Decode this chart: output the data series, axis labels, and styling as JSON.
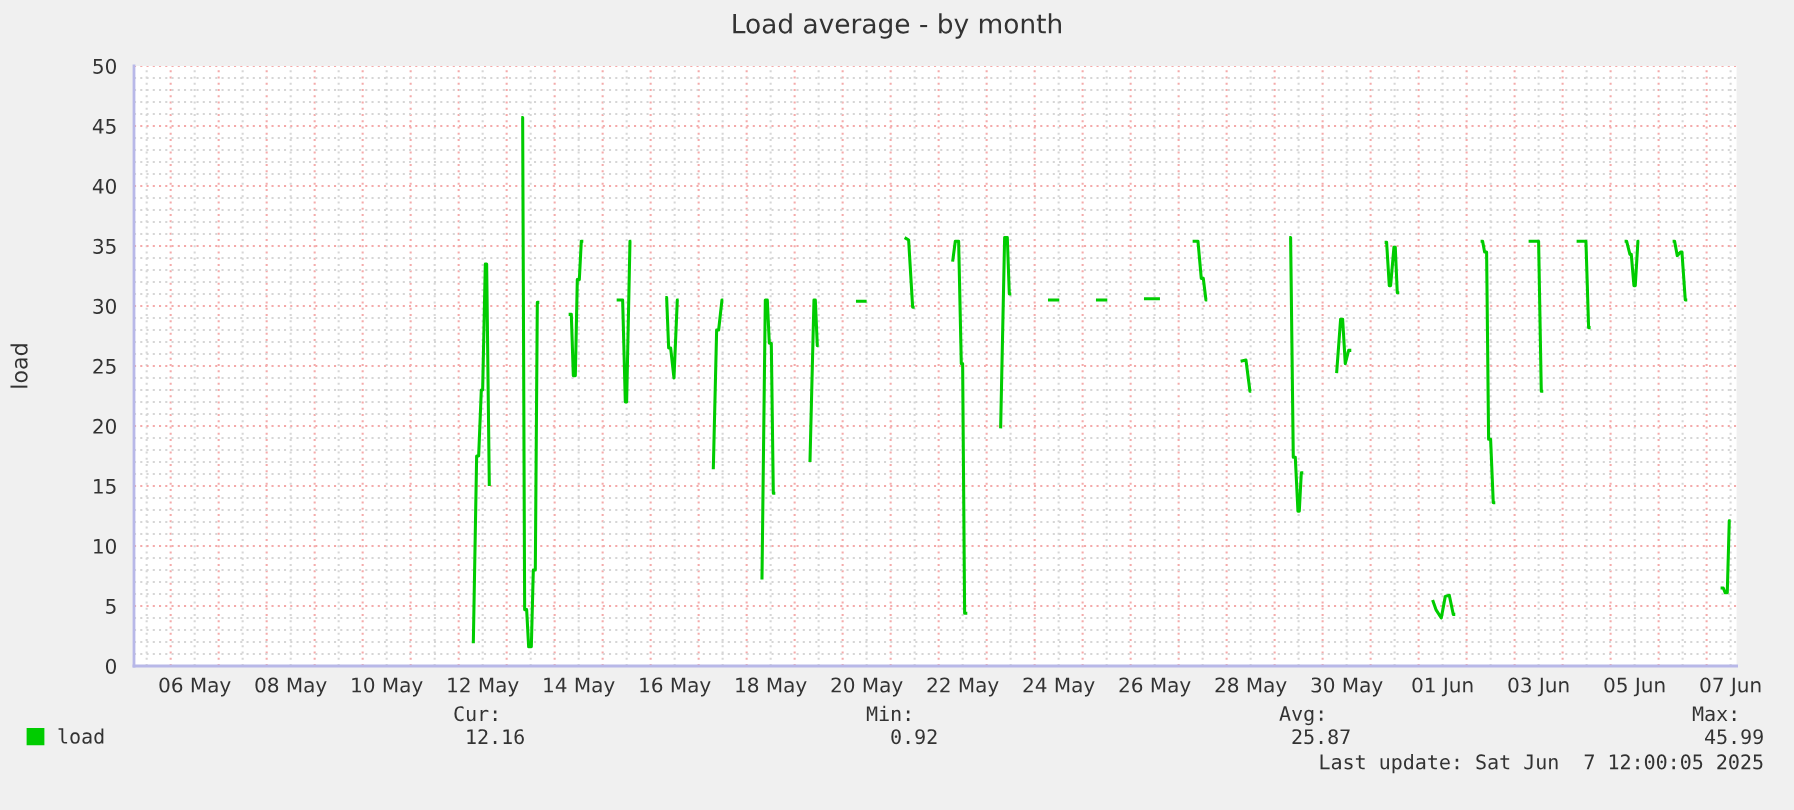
{
  "chart_data": {
    "type": "line",
    "title": "Load average - by month",
    "ylabel": "load",
    "xlim": [
      "2025-05-05T05:40",
      "2025-06-07T15:00"
    ],
    "xticks": [
      {
        "value": "2025-05-05T12:00",
        "label": null
      },
      {
        "value": "2025-05-06",
        "label": null
      },
      {
        "value": "2025-05-06T12:00",
        "label": "06 May"
      },
      {
        "value": "2025-05-07",
        "label": null
      },
      {
        "value": "2025-05-07T12:00",
        "label": null
      },
      {
        "value": "2025-05-08",
        "label": null
      },
      {
        "value": "2025-05-08T12:00",
        "label": "08 May"
      },
      {
        "value": "2025-05-09",
        "label": null
      },
      {
        "value": "2025-05-09T12:00",
        "label": null
      },
      {
        "value": "2025-05-10",
        "label": null
      },
      {
        "value": "2025-05-10T12:00",
        "label": "10 May"
      },
      {
        "value": "2025-05-11",
        "label": null
      },
      {
        "value": "2025-05-11T12:00",
        "label": null
      },
      {
        "value": "2025-05-12",
        "label": null
      },
      {
        "value": "2025-05-12T12:00",
        "label": "12 May"
      },
      {
        "value": "2025-05-13",
        "label": null
      },
      {
        "value": "2025-05-13T12:00",
        "label": null
      },
      {
        "value": "2025-05-14",
        "label": null
      },
      {
        "value": "2025-05-14T12:00",
        "label": "14 May"
      },
      {
        "value": "2025-05-15",
        "label": null
      },
      {
        "value": "2025-05-15T12:00",
        "label": null
      },
      {
        "value": "2025-05-16",
        "label": null
      },
      {
        "value": "2025-05-16T12:00",
        "label": "16 May"
      },
      {
        "value": "2025-05-17",
        "label": null
      },
      {
        "value": "2025-05-17T12:00",
        "label": null
      },
      {
        "value": "2025-05-18",
        "label": null
      },
      {
        "value": "2025-05-18T12:00",
        "label": "18 May"
      },
      {
        "value": "2025-05-19",
        "label": null
      },
      {
        "value": "2025-05-19T12:00",
        "label": null
      },
      {
        "value": "2025-05-20",
        "label": null
      },
      {
        "value": "2025-05-20T12:00",
        "label": "20 May"
      },
      {
        "value": "2025-05-21",
        "label": null
      },
      {
        "value": "2025-05-21T12:00",
        "label": null
      },
      {
        "value": "2025-05-22",
        "label": null
      },
      {
        "value": "2025-05-22T12:00",
        "label": "22 May"
      },
      {
        "value": "2025-05-23",
        "label": null
      },
      {
        "value": "2025-05-23T12:00",
        "label": null
      },
      {
        "value": "2025-05-24",
        "label": null
      },
      {
        "value": "2025-05-24T12:00",
        "label": "24 May"
      },
      {
        "value": "2025-05-25",
        "label": null
      },
      {
        "value": "2025-05-25T12:00",
        "label": null
      },
      {
        "value": "2025-05-26",
        "label": null
      },
      {
        "value": "2025-05-26T12:00",
        "label": "26 May"
      },
      {
        "value": "2025-05-27",
        "label": null
      },
      {
        "value": "2025-05-27T12:00",
        "label": null
      },
      {
        "value": "2025-05-28",
        "label": null
      },
      {
        "value": "2025-05-28T12:00",
        "label": "28 May"
      },
      {
        "value": "2025-05-29",
        "label": null
      },
      {
        "value": "2025-05-29T12:00",
        "label": null
      },
      {
        "value": "2025-05-30",
        "label": null
      },
      {
        "value": "2025-05-30T12:00",
        "label": "30 May"
      },
      {
        "value": "2025-05-31",
        "label": null
      },
      {
        "value": "2025-05-31T12:00",
        "label": null
      },
      {
        "value": "2025-06-01",
        "label": null
      },
      {
        "value": "2025-06-01T12:00",
        "label": "01 Jun"
      },
      {
        "value": "2025-06-02",
        "label": null
      },
      {
        "value": "2025-06-02T12:00",
        "label": null
      },
      {
        "value": "2025-06-03",
        "label": null
      },
      {
        "value": "2025-06-03T12:00",
        "label": "03 Jun"
      },
      {
        "value": "2025-06-04",
        "label": null
      },
      {
        "value": "2025-06-04T12:00",
        "label": null
      },
      {
        "value": "2025-06-05",
        "label": null
      },
      {
        "value": "2025-06-05T12:00",
        "label": "05 Jun"
      },
      {
        "value": "2025-06-06",
        "label": null
      },
      {
        "value": "2025-06-06T12:00",
        "label": null
      },
      {
        "value": "2025-06-07",
        "label": null
      },
      {
        "value": "2025-06-07T12:00",
        "label": "07 Jun"
      }
    ],
    "ylim": [
      0,
      50
    ],
    "yticks": [
      0,
      {
        "value": 1,
        "label": null
      },
      {
        "value": 2,
        "label": null
      },
      {
        "value": 3,
        "label": null
      },
      {
        "value": 4,
        "label": null
      },
      5,
      {
        "value": 6,
        "label": null
      },
      {
        "value": 7,
        "label": null
      },
      {
        "value": 8,
        "label": null
      },
      {
        "value": 9,
        "label": null
      },
      10,
      {
        "value": 11,
        "label": null
      },
      {
        "value": 12,
        "label": null
      },
      {
        "value": 13,
        "label": null
      },
      {
        "value": 14,
        "label": null
      },
      15,
      {
        "value": 16,
        "label": null
      },
      {
        "value": 17,
        "label": null
      },
      {
        "value": 18,
        "label": null
      },
      {
        "value": 19,
        "label": null
      },
      20,
      {
        "value": 21,
        "label": null
      },
      {
        "value": 22,
        "label": null
      },
      {
        "value": 23,
        "label": null
      },
      {
        "value": 24,
        "label": null
      },
      25,
      {
        "value": 26,
        "label": null
      },
      {
        "value": 27,
        "label": null
      },
      {
        "value": 28,
        "label": null
      },
      {
        "value": 29,
        "label": null
      },
      30,
      {
        "value": 31,
        "label": null
      },
      {
        "value": 32,
        "label": null
      },
      {
        "value": 33,
        "label": null
      },
      {
        "value": 34,
        "label": null
      },
      35,
      {
        "value": 36,
        "label": null
      },
      {
        "value": 37,
        "label": null
      },
      {
        "value": 38,
        "label": null
      },
      {
        "value": 39,
        "label": null
      },
      40,
      {
        "value": 41,
        "label": null
      },
      {
        "value": 42,
        "label": null
      },
      {
        "value": 43,
        "label": null
      },
      {
        "value": 44,
        "label": null
      },
      45,
      {
        "value": 46,
        "label": null
      },
      {
        "value": 47,
        "label": null
      },
      {
        "value": 48,
        "label": null
      },
      {
        "value": 49,
        "label": null
      },
      50
    ],
    "grid": true,
    "legend": "bottom left",
    "series": [
      {
        "name": "load",
        "color": "#00cc00",
        "x": [
          "2025-05-12T07:20",
          "2025-05-12T09:00",
          "2025-05-12T10:00",
          "2025-05-12T11:20",
          "2025-05-12T12:00",
          "2025-05-12T13:20",
          "2025-05-12T14:00",
          "2025-05-12T15:20",
          "2025-05-13T00:00",
          "2025-05-13T07:20",
          "2025-05-13T08:00",
          "2025-05-13T09:00",
          "2025-05-13T10:00",
          "2025-05-13T11:00",
          "2025-05-13T12:20",
          "2025-05-13T13:20",
          "2025-05-13T14:20",
          "2025-05-13T15:20",
          "2025-05-13T16:20",
          "2025-05-14T00:00",
          "2025-05-14T07:00",
          "2025-05-14T08:20",
          "2025-05-14T09:20",
          "2025-05-14T10:20",
          "2025-05-14T11:20",
          "2025-05-14T12:20",
          "2025-05-14T13:20",
          "2025-05-14T14:20",
          "2025-05-15T00:00",
          "2025-05-15T07:00",
          "2025-05-15T10:00",
          "2025-05-15T11:20",
          "2025-05-15T12:00",
          "2025-05-15T13:40",
          "2025-05-15T14:20",
          "2025-05-16T00:00",
          "2025-05-16T07:20",
          "2025-05-16T08:00",
          "2025-05-16T09:00",
          "2025-05-16T10:00",
          "2025-05-16T11:40",
          "2025-05-16T13:20",
          "2025-05-16T14:00",
          "2025-05-17T00:00",
          "2025-05-17T07:20",
          "2025-05-17T09:00",
          "2025-05-17T10:00",
          "2025-05-17T11:40",
          "2025-05-17T12:20",
          "2025-05-18T00:00",
          "2025-05-18T07:40",
          "2025-05-18T09:20",
          "2025-05-18T10:20",
          "2025-05-18T11:20",
          "2025-05-18T12:20",
          "2025-05-18T13:20",
          "2025-05-18T14:20",
          "2025-05-19T00:00",
          "2025-05-19T07:40",
          "2025-05-19T09:40",
          "2025-05-19T10:20",
          "2025-05-19T11:20",
          "2025-05-19T12:00",
          "2025-05-20T00:00",
          "2025-05-20T06:40",
          "2025-05-20T12:00",
          "2025-05-21T00:00",
          "2025-05-21T07:00",
          "2025-05-21T09:00",
          "2025-05-21T11:00",
          "2025-05-21T12:00",
          "2025-05-22T00:00",
          "2025-05-22T07:00",
          "2025-05-22T08:20",
          "2025-05-22T10:00",
          "2025-05-22T11:20",
          "2025-05-22T12:00",
          "2025-05-22T13:00",
          "2025-05-22T14:20",
          "2025-05-23T00:00",
          "2025-05-23T07:00",
          "2025-05-23T09:00",
          "2025-05-23T10:20",
          "2025-05-23T11:20",
          "2025-05-23T12:20",
          "2025-05-24T00:00",
          "2025-05-24T06:40",
          "2025-05-24T12:20",
          "2025-05-25T00:00",
          "2025-05-25T06:40",
          "2025-05-25T12:20",
          "2025-05-26T00:00",
          "2025-05-26T06:40",
          "2025-05-26T14:40",
          "2025-05-27T00:00",
          "2025-05-27T07:00",
          "2025-05-27T09:40",
          "2025-05-27T11:20",
          "2025-05-27T12:20",
          "2025-05-27T13:40",
          "2025-05-27T14:20",
          "2025-05-28T00:00",
          "2025-05-28T07:00",
          "2025-05-28T09:40",
          "2025-05-28T11:40",
          "2025-05-28T12:20",
          "2025-05-29T00:00",
          "2025-05-29T07:20",
          "2025-05-29T08:00",
          "2025-05-29T09:20",
          "2025-05-29T10:20",
          "2025-05-29T11:40",
          "2025-05-29T12:20",
          "2025-05-29T13:20",
          "2025-05-29T14:20",
          "2025-05-30T00:00",
          "2025-05-30T07:00",
          "2025-05-30T09:00",
          "2025-05-30T10:00",
          "2025-05-30T11:20",
          "2025-05-30T13:00",
          "2025-05-30T14:20",
          "2025-05-31T00:00",
          "2025-05-31T07:00",
          "2025-05-31T08:00",
          "2025-05-31T09:20",
          "2025-05-31T10:00",
          "2025-05-31T11:40",
          "2025-05-31T12:20",
          "2025-05-31T13:20",
          "2025-05-31T14:20",
          "2025-06-01T00:00",
          "2025-06-01T07:00",
          "2025-06-01T08:40",
          "2025-06-01T11:20",
          "2025-06-01T13:20",
          "2025-06-01T15:20",
          "2025-06-01T17:20",
          "2025-06-01T18:20",
          "2025-06-02T00:00",
          "2025-06-02T07:00",
          "2025-06-02T08:00",
          "2025-06-02T09:00",
          "2025-06-02T10:00",
          "2025-06-02T11:00",
          "2025-06-02T12:00",
          "2025-06-02T13:20",
          "2025-06-02T14:20",
          "2025-06-03T00:00",
          "2025-06-03T07:00",
          "2025-06-03T12:00",
          "2025-06-03T13:20",
          "2025-06-03T14:20",
          "2025-06-04T00:00",
          "2025-06-04T07:00",
          "2025-06-04T11:40",
          "2025-06-04T13:00",
          "2025-06-04T14:00",
          "2025-06-05T00:00",
          "2025-06-05T07:00",
          "2025-06-05T08:00",
          "2025-06-05T09:40",
          "2025-06-05T10:20",
          "2025-06-05T11:40",
          "2025-06-05T12:20",
          "2025-06-05T13:40",
          "2025-06-05T14:20",
          "2025-06-06T00:00",
          "2025-06-06T07:00",
          "2025-06-06T08:00",
          "2025-06-06T09:20",
          "2025-06-06T11:00",
          "2025-06-06T11:40",
          "2025-06-06T13:20",
          "2025-06-06T14:20",
          "2025-06-07T00:00",
          "2025-06-07T07:00",
          "2025-06-07T08:20",
          "2025-06-07T09:20",
          "2025-06-07T10:20",
          "2025-06-07T11:20",
          "2025-06-07T12:00"
        ],
        "values": [
          1.9,
          17.5,
          17.5,
          23.0,
          23.0,
          33.5,
          33.5,
          15.0,
          null,
          45.7,
          45.7,
          4.7,
          4.7,
          1.6,
          1.6,
          8.0,
          8.0,
          30.3,
          30.3,
          null,
          29.3,
          29.3,
          24.2,
          24.2,
          32.2,
          32.2,
          35.4,
          35.4,
          null,
          30.5,
          30.5,
          22.0,
          22.0,
          35.4,
          35.4,
          null,
          30.7,
          30.7,
          26.5,
          26.5,
          24.0,
          30.5,
          30.5,
          null,
          16.4,
          28.0,
          28.0,
          30.5,
          30.5,
          null,
          7.2,
          30.5,
          30.5,
          26.9,
          26.9,
          14.4,
          14.4,
          null,
          17.0,
          30.5,
          30.5,
          26.7,
          26.7,
          null,
          30.4,
          30.4,
          null,
          35.7,
          35.5,
          29.9,
          29.9,
          null,
          33.7,
          35.4,
          35.4,
          25.2,
          25.2,
          4.4,
          4.4,
          null,
          19.8,
          35.7,
          35.7,
          31.0,
          31.0,
          null,
          30.5,
          30.5,
          null,
          30.5,
          30.5,
          null,
          30.6,
          30.6,
          null,
          35.4,
          35.4,
          32.3,
          32.3,
          30.5,
          30.5,
          null,
          25.4,
          25.5,
          22.9,
          22.9,
          null,
          35.7,
          35.7,
          17.4,
          17.4,
          12.9,
          12.9,
          16.1,
          16.1,
          null,
          24.4,
          28.9,
          28.9,
          25.2,
          26.3,
          26.3,
          null,
          35.3,
          35.3,
          31.7,
          31.7,
          34.9,
          34.9,
          31.1,
          31.1,
          null,
          5.5,
          4.7,
          4.0,
          5.8,
          5.9,
          4.3,
          4.3,
          null,
          35.4,
          35.4,
          34.5,
          34.5,
          18.9,
          18.9,
          13.6,
          13.6,
          null,
          35.4,
          35.4,
          22.9,
          22.9,
          null,
          35.4,
          35.4,
          28.2,
          28.2,
          null,
          35.4,
          35.4,
          34.3,
          34.3,
          31.7,
          31.7,
          35.4,
          35.4,
          null,
          35.4,
          35.4,
          34.2,
          34.5,
          34.5,
          30.5,
          30.5,
          null,
          6.5,
          6.5,
          6.1,
          6.1,
          12.1,
          12.1
        ]
      }
    ],
    "annotations": [
      "Cur:",
      "12.16",
      "Min:",
      "0.92",
      "Avg:",
      "25.87",
      "Max:",
      "45.99",
      "Last update: Sat Jun  7 12:00:05 2025"
    ]
  }
}
